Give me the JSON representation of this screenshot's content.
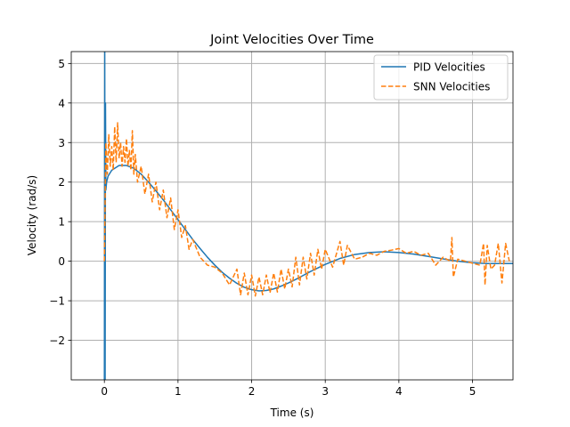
{
  "chart_data": {
    "type": "line",
    "title": "Joint Velocities Over Time",
    "xlabel": "Time (s)",
    "ylabel": "Velocity (rad/s)",
    "xlim": [
      -0.45,
      5.55
    ],
    "ylim": [
      -3.0,
      5.3
    ],
    "xticks": [
      0,
      1,
      2,
      3,
      4,
      5
    ],
    "yticks": [
      -2,
      -1,
      0,
      1,
      2,
      3,
      4,
      5
    ],
    "xtick_labels": [
      "0",
      "1",
      "2",
      "3",
      "4",
      "5"
    ],
    "ytick_labels": [
      "−2",
      "−1",
      "0",
      "1",
      "2",
      "3",
      "4",
      "5"
    ],
    "grid": true,
    "legend_position": "top-right",
    "series": [
      {
        "name": "PID Velocities",
        "color": "#1f77b4",
        "style": "solid",
        "x": [
          0.0,
          0.005,
          0.01,
          0.015,
          0.02,
          0.03,
          0.05,
          0.1,
          0.2,
          0.3,
          0.4,
          0.5,
          0.6,
          0.7,
          0.8,
          0.9,
          1.0,
          1.1,
          1.2,
          1.3,
          1.4,
          1.5,
          1.6,
          1.7,
          1.8,
          1.9,
          2.0,
          2.1,
          2.2,
          2.3,
          2.4,
          2.5,
          2.6,
          2.7,
          2.8,
          2.9,
          3.0,
          3.2,
          3.4,
          3.6,
          3.8,
          4.0,
          4.2,
          4.4,
          4.6,
          4.8,
          5.0,
          5.2,
          5.4,
          5.55
        ],
        "y": [
          -3.0,
          5.3,
          -3.0,
          4.0,
          1.8,
          2.0,
          2.15,
          2.3,
          2.42,
          2.42,
          2.35,
          2.2,
          2.0,
          1.78,
          1.55,
          1.3,
          1.05,
          0.8,
          0.55,
          0.32,
          0.1,
          -0.1,
          -0.28,
          -0.43,
          -0.56,
          -0.66,
          -0.72,
          -0.75,
          -0.74,
          -0.7,
          -0.63,
          -0.55,
          -0.46,
          -0.36,
          -0.26,
          -0.17,
          -0.08,
          0.07,
          0.17,
          0.22,
          0.24,
          0.22,
          0.18,
          0.12,
          0.06,
          0.0,
          -0.04,
          -0.06,
          -0.06,
          -0.06
        ]
      },
      {
        "name": "SNN Velocities",
        "color": "#ff7f0e",
        "style": "dashed",
        "x": [
          0.0,
          0.02,
          0.04,
          0.06,
          0.08,
          0.1,
          0.12,
          0.14,
          0.16,
          0.18,
          0.2,
          0.22,
          0.24,
          0.26,
          0.28,
          0.3,
          0.32,
          0.34,
          0.36,
          0.38,
          0.4,
          0.42,
          0.45,
          0.5,
          0.55,
          0.6,
          0.65,
          0.7,
          0.75,
          0.8,
          0.85,
          0.9,
          0.95,
          1.0,
          1.05,
          1.1,
          1.15,
          1.2,
          1.3,
          1.4,
          1.5,
          1.6,
          1.7,
          1.8,
          1.85,
          1.9,
          1.95,
          2.0,
          2.05,
          2.1,
          2.15,
          2.2,
          2.25,
          2.3,
          2.35,
          2.4,
          2.45,
          2.5,
          2.55,
          2.6,
          2.65,
          2.7,
          2.75,
          2.8,
          2.85,
          2.9,
          2.95,
          3.0,
          3.1,
          3.2,
          3.25,
          3.3,
          3.4,
          3.5,
          3.6,
          3.7,
          3.8,
          3.9,
          4.0,
          4.1,
          4.2,
          4.3,
          4.4,
          4.5,
          4.6,
          4.7,
          4.72,
          4.74,
          4.8,
          4.9,
          5.0,
          5.1,
          5.15,
          5.17,
          5.2,
          5.25,
          5.3,
          5.35,
          5.4,
          5.45,
          5.5
        ],
        "y": [
          0.0,
          3.0,
          2.2,
          3.2,
          2.4,
          2.9,
          2.3,
          3.4,
          2.5,
          3.5,
          2.6,
          3.0,
          2.4,
          2.9,
          2.5,
          3.1,
          2.4,
          2.8,
          2.3,
          3.3,
          2.2,
          2.7,
          2.0,
          2.4,
          1.7,
          2.2,
          1.5,
          2.0,
          1.3,
          1.8,
          1.1,
          1.6,
          0.8,
          1.3,
          0.6,
          0.9,
          0.3,
          0.55,
          0.1,
          -0.1,
          -0.15,
          -0.3,
          -0.6,
          -0.2,
          -0.85,
          -0.3,
          -0.85,
          -0.35,
          -0.88,
          -0.4,
          -0.85,
          -0.35,
          -0.8,
          -0.3,
          -0.78,
          -0.2,
          -0.7,
          -0.2,
          -0.65,
          0.1,
          -0.6,
          0.1,
          -0.45,
          0.2,
          -0.35,
          0.3,
          -0.2,
          0.3,
          -0.15,
          0.5,
          -0.1,
          0.4,
          0.05,
          0.1,
          0.2,
          0.15,
          0.25,
          0.28,
          0.32,
          0.2,
          0.25,
          0.15,
          0.2,
          -0.1,
          0.1,
          0.0,
          0.6,
          -0.4,
          0.05,
          0.0,
          -0.05,
          -0.1,
          0.45,
          -0.6,
          0.4,
          -0.2,
          -0.1,
          0.45,
          -0.55,
          0.45,
          0.0
        ]
      }
    ]
  }
}
